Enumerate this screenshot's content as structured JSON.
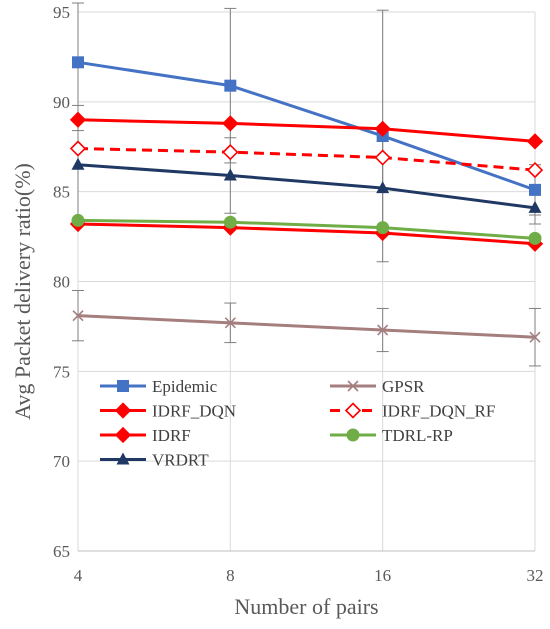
{
  "chart_data": {
    "type": "line",
    "title": "",
    "xlabel": "Number of pairs",
    "ylabel": "Avg Packet delivery ratio(%)",
    "categories": [
      "4",
      "8",
      "16",
      "32"
    ],
    "ylim": [
      65,
      95
    ],
    "yticks": [
      "65",
      "70",
      "75",
      "80",
      "85",
      "90",
      "95"
    ],
    "grid": "horizontal",
    "legend_position": "inside-bottom",
    "series": [
      {
        "name": "Epidemic",
        "values": [
          92.2,
          90.9,
          88.1,
          85.1
        ],
        "color": "#4472C4",
        "marker": "square",
        "dash": false,
        "err": [
          3.8,
          4.3,
          7.0,
          1.4
        ]
      },
      {
        "name": "GPSR",
        "values": [
          78.1,
          77.7,
          77.3,
          76.9
        ],
        "color": "#A57E7E",
        "marker": "x",
        "dash": false,
        "err": [
          1.4,
          1.1,
          1.2,
          1.6
        ]
      },
      {
        "name": "IDRF_DQN",
        "values": [
          89.0,
          88.8,
          88.5,
          87.8
        ],
        "color": "#FF0000",
        "marker": "diamond",
        "dash": false,
        "err": [
          0,
          0,
          0,
          0
        ]
      },
      {
        "name": "IDRF_DQN_RF",
        "values": [
          87.4,
          87.2,
          86.9,
          86.2
        ],
        "color": "#FF0000",
        "marker": "diamond-open",
        "dash": true,
        "err": [
          0,
          0,
          0,
          0
        ]
      },
      {
        "name": "IDRF",
        "values": [
          83.2,
          83.0,
          82.7,
          82.1
        ],
        "color": "#FF0000",
        "marker": "diamond",
        "dash": false,
        "err": [
          0,
          0,
          0,
          0
        ]
      },
      {
        "name": "TDRL-RP",
        "values": [
          83.4,
          83.3,
          83.0,
          82.4
        ],
        "color": "#70AD47",
        "marker": "circle",
        "dash": false,
        "err": [
          0,
          0,
          0,
          0
        ]
      },
      {
        "name": "VRDRT",
        "values": [
          86.5,
          85.9,
          85.2,
          84.1
        ],
        "color": "#203864",
        "marker": "triangle",
        "dash": false,
        "err": [
          3.3,
          2.1,
          2.6,
          0.9
        ]
      }
    ],
    "error_bar_color": "#7F7F7F"
  }
}
